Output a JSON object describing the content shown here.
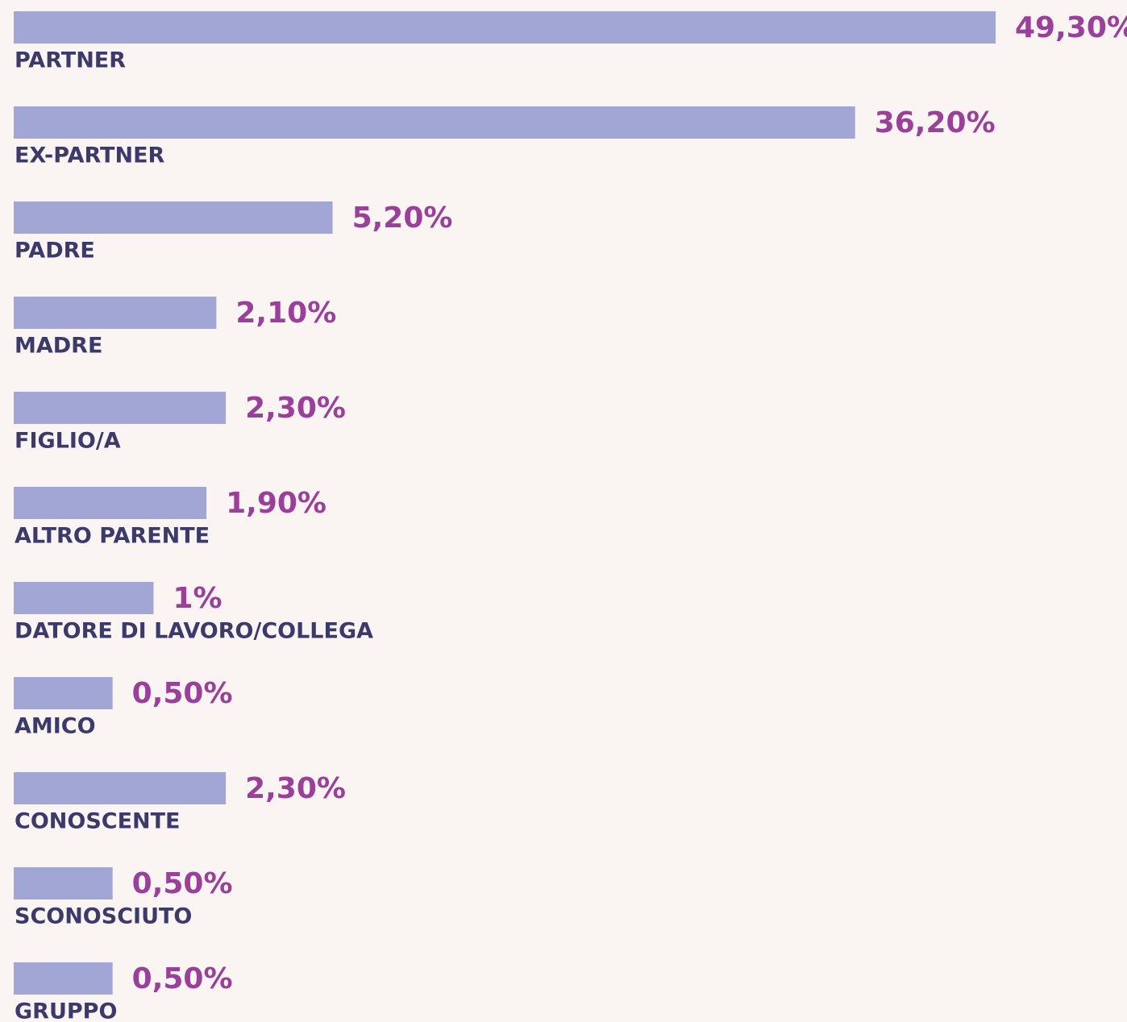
{
  "chart_data": {
    "type": "bar",
    "orientation": "horizontal",
    "color": "#a2a6d4",
    "categories": [
      "PARTNER",
      "EX-PARTNER",
      "PADRE",
      "MADRE",
      "FIGLIO/A",
      "ALTRO PARENTE",
      "DATORE DI LAVORO/COLLEGA",
      "AMICO",
      "CONOSCENTE",
      "SCONOSCIUTO",
      "GRUPPO"
    ],
    "values": [
      49.3,
      36.2,
      5.2,
      2.1,
      2.3,
      1.9,
      1,
      0.5,
      2.3,
      0.5,
      0.5
    ],
    "value_labels": [
      "49,30%",
      "36,20%",
      "5,20%",
      "2,10%",
      "2,30%",
      "1,90%",
      "1%",
      "0,50%",
      "2,30%",
      "0,50%",
      "0,50%"
    ]
  }
}
